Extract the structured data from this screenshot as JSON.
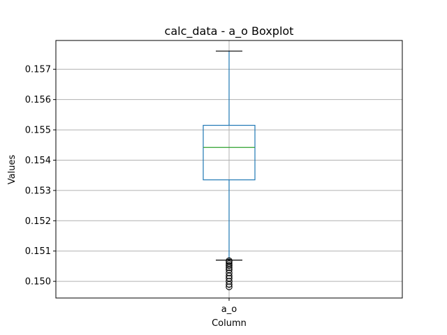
{
  "chart_data": {
    "type": "boxplot",
    "title": "calc_data - a_o Boxplot",
    "xlabel": "Column",
    "ylabel": "Values",
    "categories": [
      "a_o"
    ],
    "ylim": [
      0.14945,
      0.15795
    ],
    "yticks": [
      {
        "value": 0.15,
        "label": "0.150"
      },
      {
        "value": 0.151,
        "label": "0.151"
      },
      {
        "value": 0.152,
        "label": "0.152"
      },
      {
        "value": 0.153,
        "label": "0.153"
      },
      {
        "value": 0.154,
        "label": "0.154"
      },
      {
        "value": 0.155,
        "label": "0.155"
      },
      {
        "value": 0.156,
        "label": "0.156"
      },
      {
        "value": 0.157,
        "label": "0.157"
      }
    ],
    "grid": true,
    "boxes": [
      {
        "name": "a_o",
        "whisker_low": 0.1507,
        "q1": 0.15335,
        "median": 0.15442,
        "q3": 0.15515,
        "whisker_high": 0.1576,
        "outliers": [
          0.15068,
          0.15064,
          0.15058,
          0.15052,
          0.15045,
          0.15038,
          0.15028,
          0.15018,
          0.1501,
          0.15,
          0.1499,
          0.14982
        ]
      }
    ],
    "colors": {
      "box": "#1f77b4",
      "median": "#2ca02c",
      "whisker": "#1f77b4",
      "cap": "#000000",
      "outlier": "#000000",
      "grid": "#b0b0b0"
    }
  }
}
